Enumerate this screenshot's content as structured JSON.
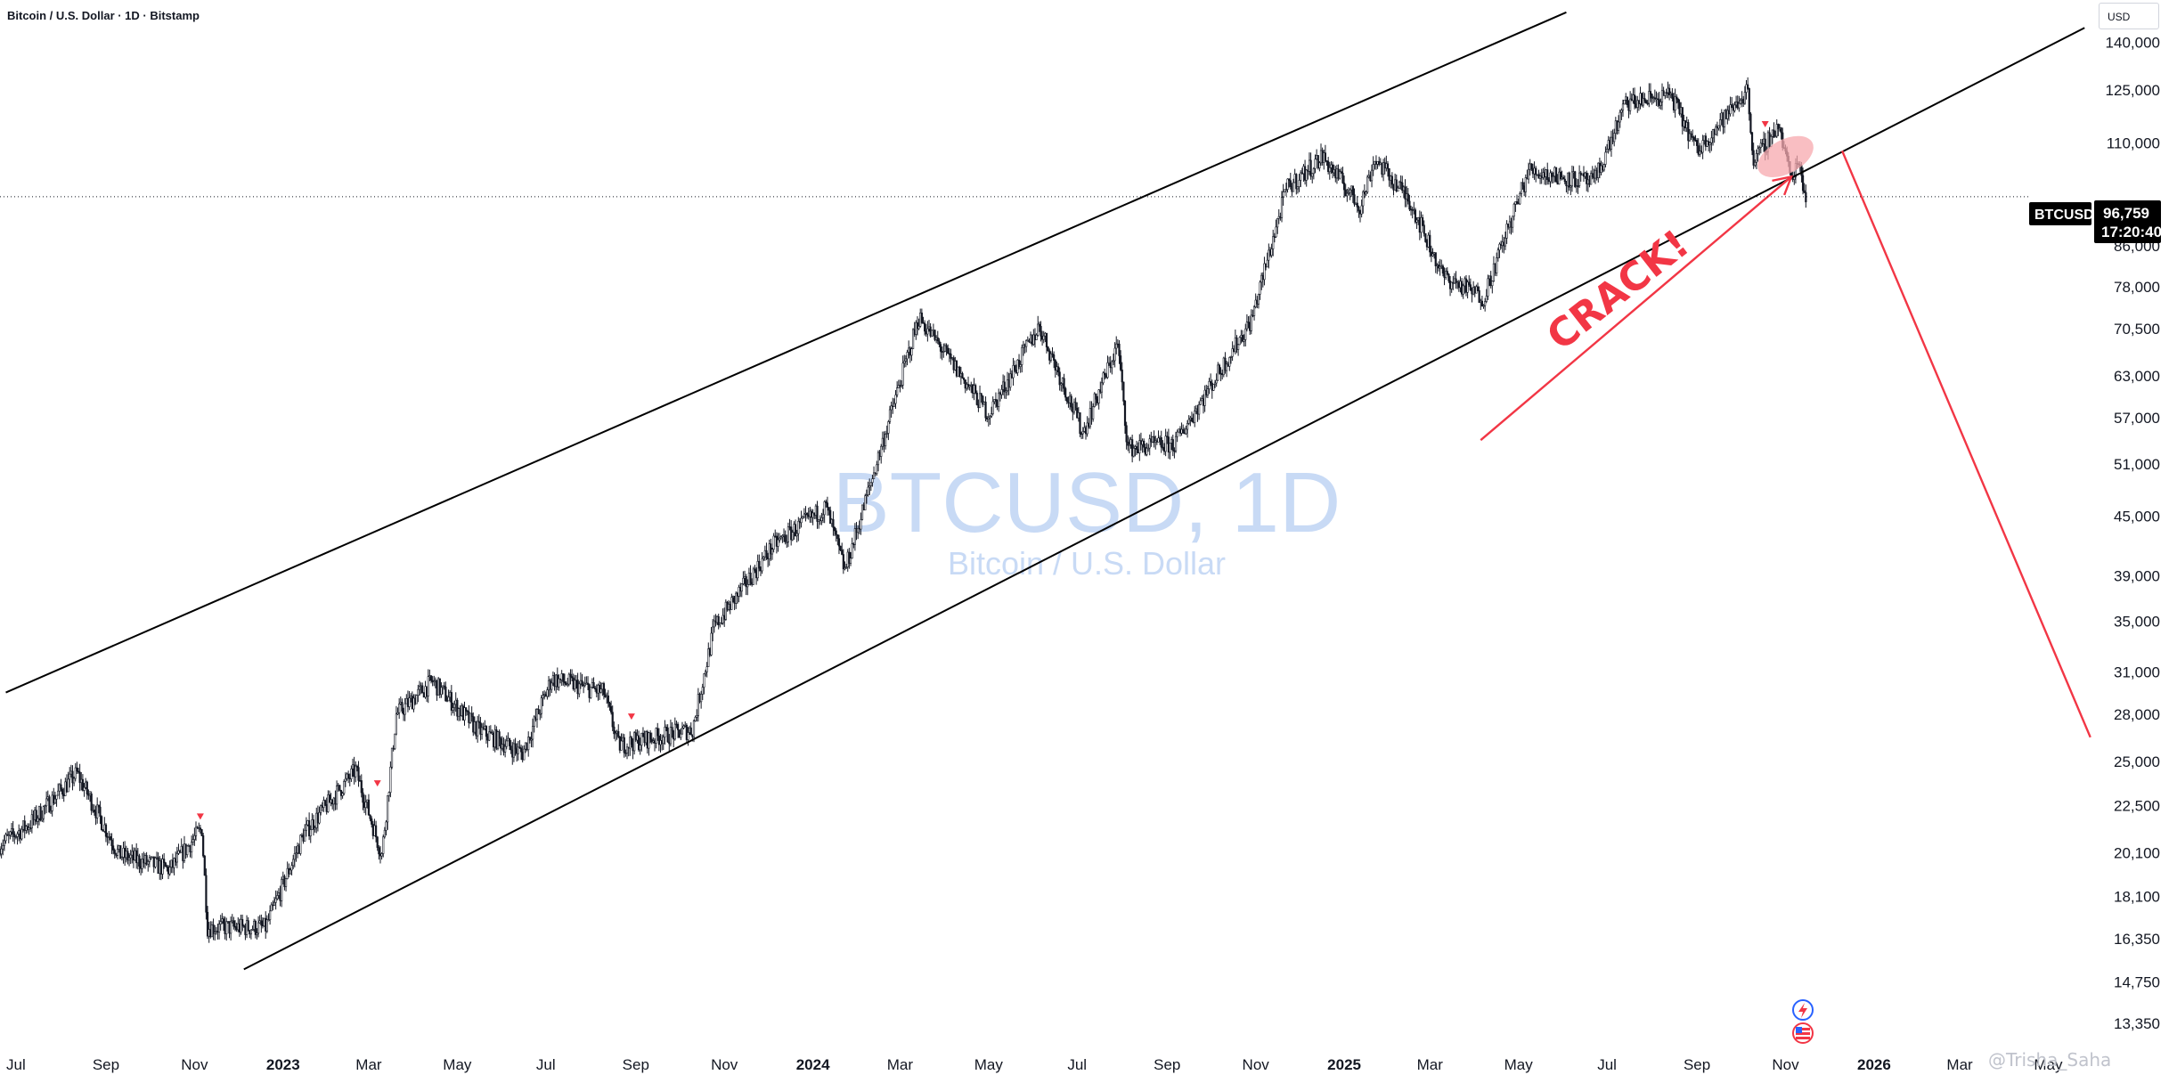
{
  "header": {
    "title": "Bitcoin / U.S. Dollar · 1D · Bitstamp",
    "currency": "USD"
  },
  "watermark": {
    "symbol": "BTCUSD, 1D",
    "name": "Bitcoin / U.S. Dollar"
  },
  "annotation": {
    "text": "CRACK!"
  },
  "price_tag": {
    "symbol": "BTCUSD",
    "price": "96,759",
    "countdown": "17:20:40"
  },
  "credit": "@Trisha_Saha",
  "colors": {
    "candle": "#131722",
    "annotation": "#f23645",
    "highlight": "#f7a8ae",
    "watermark": "#c8daf5",
    "trendline": "#000000"
  },
  "icons": [
    "lightning-icon",
    "us-flag-icon"
  ],
  "chart_data": {
    "type": "candlestick",
    "scale": "log",
    "ylim": [
      12500,
      155000
    ],
    "xlim": [
      "2022-06-20",
      "2026-06-01"
    ],
    "y_ticks": [
      {
        "value": 140000,
        "label": "140,000"
      },
      {
        "value": 125000,
        "label": "125,000"
      },
      {
        "value": 110000,
        "label": "110,000"
      },
      {
        "value": 86000,
        "label": "86,000"
      },
      {
        "value": 78000,
        "label": "78,000"
      },
      {
        "value": 70500,
        "label": "70,500"
      },
      {
        "value": 63000,
        "label": "63,000"
      },
      {
        "value": 57000,
        "label": "57,000"
      },
      {
        "value": 51000,
        "label": "51,000"
      },
      {
        "value": 45000,
        "label": "45,000"
      },
      {
        "value": 39000,
        "label": "39,000"
      },
      {
        "value": 35000,
        "label": "35,000"
      },
      {
        "value": 31000,
        "label": "31,000"
      },
      {
        "value": 28000,
        "label": "28,000"
      },
      {
        "value": 25000,
        "label": "25,000"
      },
      {
        "value": 22500,
        "label": "22,500"
      },
      {
        "value": 20100,
        "label": "20,100"
      },
      {
        "value": 18100,
        "label": "18,100"
      },
      {
        "value": 16350,
        "label": "16,350"
      },
      {
        "value": 14750,
        "label": "14,750"
      },
      {
        "value": 13350,
        "label": "13,350"
      }
    ],
    "x_ticks": [
      {
        "date": "2022-07-01",
        "label": "Jul",
        "bold": false
      },
      {
        "date": "2022-09-01",
        "label": "Sep",
        "bold": false
      },
      {
        "date": "2022-11-01",
        "label": "Nov",
        "bold": false
      },
      {
        "date": "2023-01-01",
        "label": "2023",
        "bold": true
      },
      {
        "date": "2023-03-01",
        "label": "Mar",
        "bold": false
      },
      {
        "date": "2023-05-01",
        "label": "May",
        "bold": false
      },
      {
        "date": "2023-07-01",
        "label": "Jul",
        "bold": false
      },
      {
        "date": "2023-09-01",
        "label": "Sep",
        "bold": false
      },
      {
        "date": "2023-11-01",
        "label": "Nov",
        "bold": false
      },
      {
        "date": "2024-01-01",
        "label": "2024",
        "bold": true
      },
      {
        "date": "2024-03-01",
        "label": "Mar",
        "bold": false
      },
      {
        "date": "2024-05-01",
        "label": "May",
        "bold": false
      },
      {
        "date": "2024-07-01",
        "label": "Jul",
        "bold": false
      },
      {
        "date": "2024-09-01",
        "label": "Sep",
        "bold": false
      },
      {
        "date": "2024-11-01",
        "label": "Nov",
        "bold": false
      },
      {
        "date": "2025-01-01",
        "label": "2025",
        "bold": true
      },
      {
        "date": "2025-03-01",
        "label": "Mar",
        "bold": false
      },
      {
        "date": "2025-05-01",
        "label": "May",
        "bold": false
      },
      {
        "date": "2025-07-01",
        "label": "Jul",
        "bold": false
      },
      {
        "date": "2025-09-01",
        "label": "Sep",
        "bold": false
      },
      {
        "date": "2025-11-01",
        "label": "Nov",
        "bold": false
      },
      {
        "date": "2026-01-01",
        "label": "2026",
        "bold": true
      },
      {
        "date": "2026-03-01",
        "label": "Mar",
        "bold": false
      },
      {
        "date": "2026-05-01",
        "label": "May",
        "bold": false
      }
    ],
    "price_path": [
      {
        "date": "2022-06-20",
        "close": 20500
      },
      {
        "date": "2022-07-10",
        "close": 21500
      },
      {
        "date": "2022-08-12",
        "close": 24300
      },
      {
        "date": "2022-09-10",
        "close": 20000
      },
      {
        "date": "2022-10-15",
        "close": 19300
      },
      {
        "date": "2022-11-06",
        "close": 21300
      },
      {
        "date": "2022-11-10",
        "close": 16800
      },
      {
        "date": "2022-12-20",
        "close": 16800
      },
      {
        "date": "2023-01-15",
        "close": 21000
      },
      {
        "date": "2023-02-20",
        "close": 24500
      },
      {
        "date": "2023-03-10",
        "close": 20000
      },
      {
        "date": "2023-03-20",
        "close": 28000
      },
      {
        "date": "2023-04-14",
        "close": 30300
      },
      {
        "date": "2023-05-15",
        "close": 27000
      },
      {
        "date": "2023-06-15",
        "close": 25500
      },
      {
        "date": "2023-07-05",
        "close": 30500
      },
      {
        "date": "2023-08-10",
        "close": 29500
      },
      {
        "date": "2023-08-20",
        "close": 26000
      },
      {
        "date": "2023-10-10",
        "close": 27000
      },
      {
        "date": "2023-10-25",
        "close": 34500
      },
      {
        "date": "2023-12-05",
        "close": 42000
      },
      {
        "date": "2024-01-10",
        "close": 46000
      },
      {
        "date": "2024-01-23",
        "close": 39500
      },
      {
        "date": "2024-02-12",
        "close": 50000
      },
      {
        "date": "2024-03-14",
        "close": 72500
      },
      {
        "date": "2024-05-01",
        "close": 57500
      },
      {
        "date": "2024-06-05",
        "close": 71000
      },
      {
        "date": "2024-07-05",
        "close": 55000
      },
      {
        "date": "2024-07-29",
        "close": 68000
      },
      {
        "date": "2024-08-05",
        "close": 53000
      },
      {
        "date": "2024-09-06",
        "close": 53500
      },
      {
        "date": "2024-10-29",
        "close": 72000
      },
      {
        "date": "2024-11-22",
        "close": 98500
      },
      {
        "date": "2024-12-17",
        "close": 106500
      },
      {
        "date": "2025-01-12",
        "close": 94500
      },
      {
        "date": "2025-01-22",
        "close": 106000
      },
      {
        "date": "2025-02-15",
        "close": 96000
      },
      {
        "date": "2025-03-10",
        "close": 80000
      },
      {
        "date": "2025-04-07",
        "close": 76000
      },
      {
        "date": "2025-05-08",
        "close": 103000
      },
      {
        "date": "2025-06-22",
        "close": 100000
      },
      {
        "date": "2025-07-14",
        "close": 121000
      },
      {
        "date": "2025-08-14",
        "close": 123500
      },
      {
        "date": "2025-09-01",
        "close": 108000
      },
      {
        "date": "2025-10-06",
        "close": 125000
      },
      {
        "date": "2025-10-10",
        "close": 105000
      },
      {
        "date": "2025-10-27",
        "close": 115000
      },
      {
        "date": "2025-11-05",
        "close": 101000
      },
      {
        "date": "2025-11-10",
        "close": 106000
      },
      {
        "date": "2025-11-15",
        "close": 96759
      }
    ],
    "trendlines": [
      {
        "name": "upper-channel",
        "from": {
          "date": "2022-06-24",
          "price": 29500
        },
        "to": {
          "date": "2025-06-03",
          "price": 150500
        }
      },
      {
        "name": "lower-channel",
        "from": {
          "date": "2022-12-05",
          "price": 15200
        },
        "to": {
          "date": "2026-05-26",
          "price": 145000
        }
      }
    ],
    "arrows": [
      {
        "name": "crack-arrow",
        "from": {
          "date": "2025-04-05",
          "price": 54000
        },
        "to": {
          "date": "2025-11-05",
          "price": 101500
        }
      },
      {
        "name": "projection-arrow",
        "from": {
          "date": "2025-12-10",
          "price": 108000
        },
        "to": {
          "date": "2026-05-30",
          "price": 26500
        }
      }
    ],
    "highlight": {
      "date": "2025-11-01",
      "price": 106500
    },
    "signal_markers": [
      {
        "date": "2022-11-05",
        "price": 21800
      },
      {
        "date": "2023-03-07",
        "price": 23600
      },
      {
        "date": "2023-08-29",
        "price": 27700
      },
      {
        "date": "2025-10-18",
        "price": 114500
      }
    ],
    "last_price": 96759
  }
}
